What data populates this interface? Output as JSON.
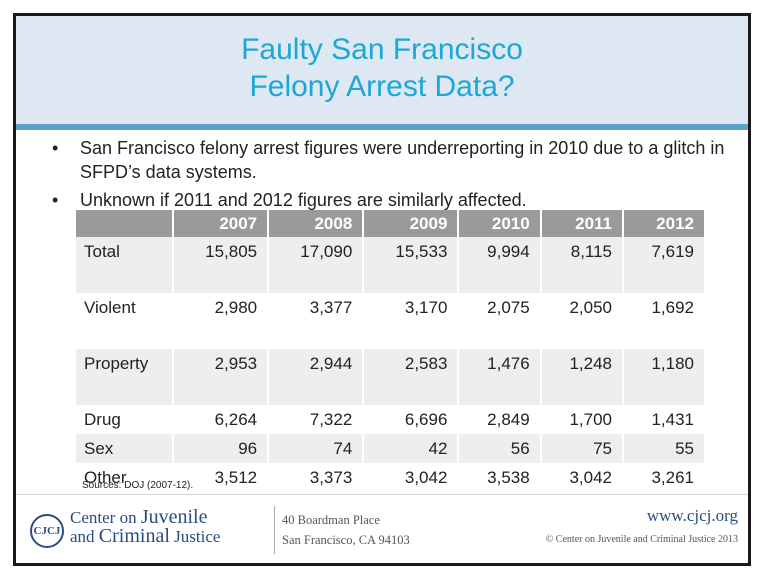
{
  "title": {
    "line1": "Faulty San Francisco",
    "line2": "Felony Arrest Data?"
  },
  "bullets": [
    {
      "marker": "•",
      "text": "San Francisco felony arrest figures were underreporting in 2010 due to a glitch in SFPD’s data systems."
    },
    {
      "marker": "•",
      "text": "Unknown if 2011 and 2012 figures are similarly affected."
    }
  ],
  "table": {
    "header": [
      "",
      "2007",
      "2008",
      "2009",
      "2010",
      "2011",
      "2012"
    ],
    "rows": [
      {
        "label": "Total",
        "values": [
          "15,805",
          "17,090",
          "15,533",
          "9,994",
          "8,115",
          "7,619"
        ]
      },
      {
        "label": "Violent",
        "values": [
          "2,980",
          "3,377",
          "3,170",
          "2,075",
          "2,050",
          "1,692"
        ]
      },
      {
        "label": "Property",
        "values": [
          "2,953",
          "2,944",
          "2,583",
          "1,476",
          "1,248",
          "1,180"
        ]
      },
      {
        "label": "Drug",
        "values": [
          "6,264",
          "7,322",
          "6,696",
          "2,849",
          "1,700",
          "1,431"
        ]
      },
      {
        "label": "Sex",
        "values": [
          "96",
          "74",
          "42",
          "56",
          "75",
          "55"
        ]
      },
      {
        "label": "Other",
        "values": [
          "3,512",
          "3,373",
          "3,042",
          "3,538",
          "3,042",
          "3,261"
        ]
      }
    ]
  },
  "sources": "Sources: DOJ (2007-12).",
  "footer": {
    "logo_badge": "CJCJ",
    "logo_line1_a": "Center on ",
    "logo_line1_b": "Juvenile",
    "logo_line2_a": "and ",
    "logo_line2_b": "Criminal",
    "logo_line2_c": " Justice",
    "address_line1": "40 Boardman Place",
    "address_line2": "San Francisco, CA 94103",
    "url": "www.cjcj.org",
    "copyright": "© Center on Juvenile and Criminal Justice 2013"
  },
  "colors": {
    "title": "#1ba8d8",
    "title_band": "#dde8f2",
    "rule": "#5aa2c8",
    "header": "#9a9a9a",
    "logo": "#2b4c7e"
  }
}
